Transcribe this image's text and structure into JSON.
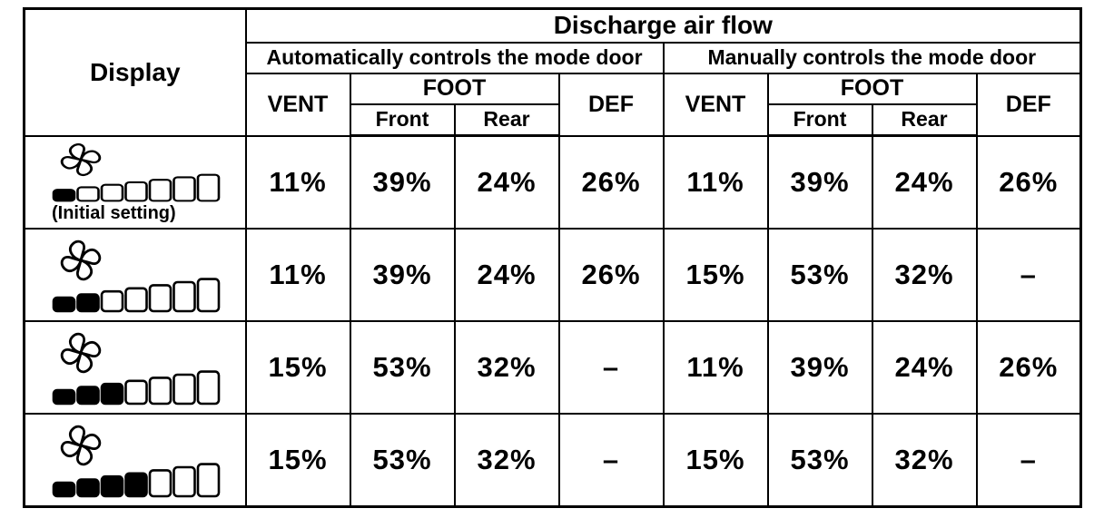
{
  "colors": {
    "background": "#ffffff",
    "border": "#000000",
    "text": "#000000",
    "segment_filled": "#000000",
    "segment_empty": "#ffffff"
  },
  "header": {
    "corner": "Display",
    "title": "Discharge air flow",
    "group_auto": "Automatically controls the mode door",
    "group_manual": "Manually controls the mode door",
    "col_vent": "VENT",
    "col_foot": "FOOT",
    "col_foot_front": "Front",
    "col_foot_rear": "Rear",
    "col_def": "DEF"
  },
  "icons": {
    "fan": "fan-icon",
    "gauge": "fan-level-gauge-icon"
  },
  "rows": [
    {
      "display": {
        "icon": "fan-icon",
        "segments_total": 7,
        "segments_filled": 1,
        "note": "(Initial setting)"
      },
      "auto": {
        "vent": "11%",
        "foot_front": "39%",
        "foot_rear": "24%",
        "def": "26%"
      },
      "manual": {
        "vent": "11%",
        "foot_front": "39%",
        "foot_rear": "24%",
        "def": "26%"
      }
    },
    {
      "display": {
        "icon": "fan-icon",
        "segments_total": 7,
        "segments_filled": 2
      },
      "auto": {
        "vent": "11%",
        "foot_front": "39%",
        "foot_rear": "24%",
        "def": "26%"
      },
      "manual": {
        "vent": "15%",
        "foot_front": "53%",
        "foot_rear": "32%",
        "def": "–"
      }
    },
    {
      "display": {
        "icon": "fan-icon",
        "segments_total": 7,
        "segments_filled": 3
      },
      "auto": {
        "vent": "15%",
        "foot_front": "53%",
        "foot_rear": "32%",
        "def": "–"
      },
      "manual": {
        "vent": "11%",
        "foot_front": "39%",
        "foot_rear": "24%",
        "def": "26%"
      }
    },
    {
      "display": {
        "icon": "fan-icon",
        "segments_total": 7,
        "segments_filled": 4
      },
      "auto": {
        "vent": "15%",
        "foot_front": "53%",
        "foot_rear": "32%",
        "def": "–"
      },
      "manual": {
        "vent": "15%",
        "foot_front": "53%",
        "foot_rear": "32%",
        "def": "–"
      }
    }
  ]
}
